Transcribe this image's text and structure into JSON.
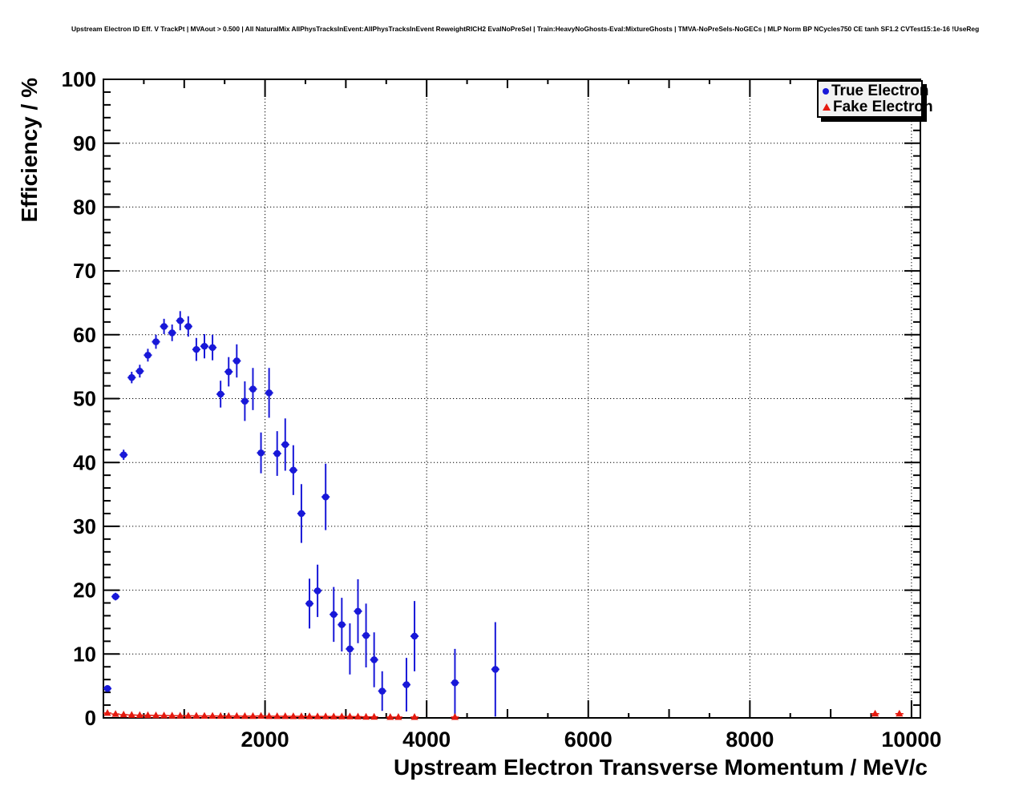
{
  "chart_data": {
    "type": "scatter",
    "title": "Upstream Electron ID Eff. V TrackPt | MVAout > 0.500 | All NaturalMix AllPhysTracksInEvent:AllPhysTracksInEvent ReweightRICH2 EvalNoPreSel | Train:HeavyNoGhosts-Eval:MixtureGhosts | TMVA-NoPreSels-NoGECs | MLP Norm BP NCycles750 CE tanh SF1.2 CVTest15:1e-16 !UseReg",
    "xlabel": "Upstream Electron Transverse Momentum / MeV/c",
    "ylabel": "Efficiency / %",
    "xlim": [
      0,
      10110
    ],
    "ylim": [
      0,
      100
    ],
    "grid": "dotted",
    "x_major_ticks": [
      2000,
      4000,
      6000,
      8000,
      10000
    ],
    "x_minor_step": 500,
    "y_major_ticks": [
      0,
      10,
      20,
      30,
      40,
      50,
      60,
      70,
      80,
      90,
      100
    ],
    "y_minor_step": 2,
    "legend": {
      "position": "top-right",
      "entries": [
        {
          "label": "True Electron",
          "marker": "circle",
          "color": "#1818d8"
        },
        {
          "label": "Fake Electron",
          "marker": "triangle",
          "color": "#e51a0f"
        }
      ]
    },
    "series": [
      {
        "name": "True Electron",
        "color": "#1818d8",
        "marker": "circle",
        "x_half_bin": 50,
        "points": [
          [
            50,
            4.6,
            0.4
          ],
          [
            150,
            19.0,
            0.6
          ],
          [
            250,
            41.2,
            0.8
          ],
          [
            350,
            53.3,
            0.9
          ],
          [
            450,
            54.3,
            1.0
          ],
          [
            550,
            56.8,
            1.0
          ],
          [
            650,
            58.9,
            1.1
          ],
          [
            750,
            61.3,
            1.2
          ],
          [
            850,
            60.3,
            1.3
          ],
          [
            950,
            62.2,
            1.5
          ],
          [
            1050,
            61.3,
            1.6
          ],
          [
            1150,
            57.7,
            1.8
          ],
          [
            1250,
            58.2,
            1.9
          ],
          [
            1350,
            58.0,
            2.0
          ],
          [
            1450,
            50.7,
            2.1
          ],
          [
            1550,
            54.2,
            2.3
          ],
          [
            1650,
            55.9,
            2.6
          ],
          [
            1750,
            49.6,
            3.1
          ],
          [
            1850,
            51.5,
            3.3
          ],
          [
            1950,
            41.5,
            3.2
          ],
          [
            2050,
            50.9,
            3.9
          ],
          [
            2150,
            41.4,
            3.5
          ],
          [
            2250,
            42.8,
            4.1
          ],
          [
            2350,
            38.8,
            3.9
          ],
          [
            2450,
            32.0,
            4.6
          ],
          [
            2550,
            17.9,
            3.9
          ],
          [
            2650,
            19.9,
            4.1
          ],
          [
            2750,
            34.6,
            5.2
          ],
          [
            2850,
            16.2,
            4.3
          ],
          [
            2950,
            14.6,
            4.2
          ],
          [
            3050,
            10.8,
            4.0
          ],
          [
            3150,
            16.7,
            5.0
          ],
          [
            3250,
            12.9,
            5.0
          ],
          [
            3350,
            9.1,
            4.3
          ],
          [
            3450,
            4.2,
            3.1
          ],
          [
            3750,
            5.2,
            4.2
          ],
          [
            3850,
            12.8,
            5.5
          ],
          [
            4350,
            5.5,
            5.3
          ],
          [
            4850,
            7.6,
            7.4
          ]
        ]
      },
      {
        "name": "Fake Electron",
        "color": "#e51a0f",
        "marker": "triangle",
        "x_half_bin": 50,
        "points": [
          [
            50,
            0.75,
            0.15
          ],
          [
            150,
            0.6,
            0.1
          ],
          [
            250,
            0.5,
            0.08
          ],
          [
            350,
            0.45,
            0.08
          ],
          [
            450,
            0.42,
            0.07
          ],
          [
            550,
            0.4,
            0.07
          ],
          [
            650,
            0.38,
            0.06
          ],
          [
            750,
            0.36,
            0.06
          ],
          [
            850,
            0.34,
            0.06
          ],
          [
            950,
            0.33,
            0.06
          ],
          [
            1050,
            0.32,
            0.05
          ],
          [
            1150,
            0.31,
            0.05
          ],
          [
            1250,
            0.3,
            0.05
          ],
          [
            1350,
            0.3,
            0.05
          ],
          [
            1450,
            0.29,
            0.05
          ],
          [
            1550,
            0.28,
            0.05
          ],
          [
            1650,
            0.28,
            0.05
          ],
          [
            1750,
            0.27,
            0.05
          ],
          [
            1850,
            0.27,
            0.05
          ],
          [
            1950,
            0.3,
            0.06
          ],
          [
            2050,
            0.26,
            0.05
          ],
          [
            2150,
            0.25,
            0.05
          ],
          [
            2250,
            0.25,
            0.05
          ],
          [
            2350,
            0.24,
            0.05
          ],
          [
            2450,
            0.24,
            0.05
          ],
          [
            2550,
            0.23,
            0.05
          ],
          [
            2650,
            0.22,
            0.05
          ],
          [
            2750,
            0.22,
            0.05
          ],
          [
            2850,
            0.21,
            0.05
          ],
          [
            2950,
            0.2,
            0.05
          ],
          [
            3050,
            0.2,
            0.05
          ],
          [
            3150,
            0.19,
            0.05
          ],
          [
            3250,
            0.15,
            0.05
          ],
          [
            3350,
            0.15,
            0.05
          ],
          [
            3550,
            0.12,
            0.06
          ],
          [
            3650,
            0.12,
            0.06
          ],
          [
            3850,
            0.12,
            0.06
          ],
          [
            4350,
            0.12,
            0.06
          ],
          [
            9550,
            0.65,
            0.35
          ],
          [
            9850,
            0.65,
            0.35
          ]
        ]
      }
    ]
  }
}
